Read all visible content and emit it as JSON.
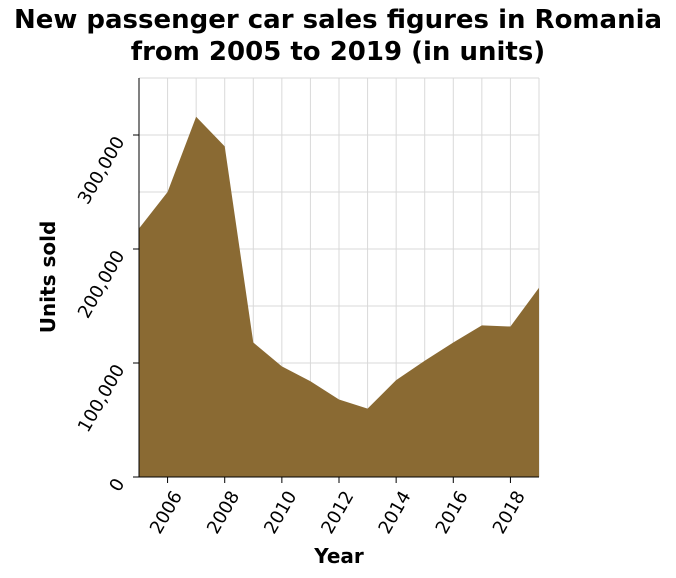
{
  "chart_data": {
    "type": "area",
    "title_lines": [
      "New passenger car sales figures in Romania",
      "from 2005 to 2019 (in units)"
    ],
    "xlabel": "Year",
    "ylabel": "Units sold",
    "x": [
      2005,
      2006,
      2007,
      2008,
      2009,
      2010,
      2011,
      2012,
      2013,
      2014,
      2015,
      2016,
      2017,
      2018,
      2019
    ],
    "series": [
      {
        "values": [
          218000,
          250000,
          316000,
          290000,
          118000,
          97000,
          84000,
          68000,
          60000,
          85000,
          102000,
          118000,
          133000,
          132000,
          166000
        ]
      }
    ],
    "xlim": [
      2005,
      2019
    ],
    "ylim": [
      0,
      350000
    ],
    "xticks": [
      2006,
      2008,
      2010,
      2012,
      2014,
      2016,
      2018
    ],
    "xtick_labels": [
      "2006",
      "2008",
      "2010",
      "2012",
      "2014",
      "2016",
      "2018"
    ],
    "yticks": [
      0,
      100000,
      200000,
      300000
    ],
    "ytick_labels": [
      "0",
      "100,000",
      "200,000",
      "300,000"
    ],
    "grid": true,
    "fill_color": "#8a6a33",
    "grid_color": "#d9d9d9"
  }
}
